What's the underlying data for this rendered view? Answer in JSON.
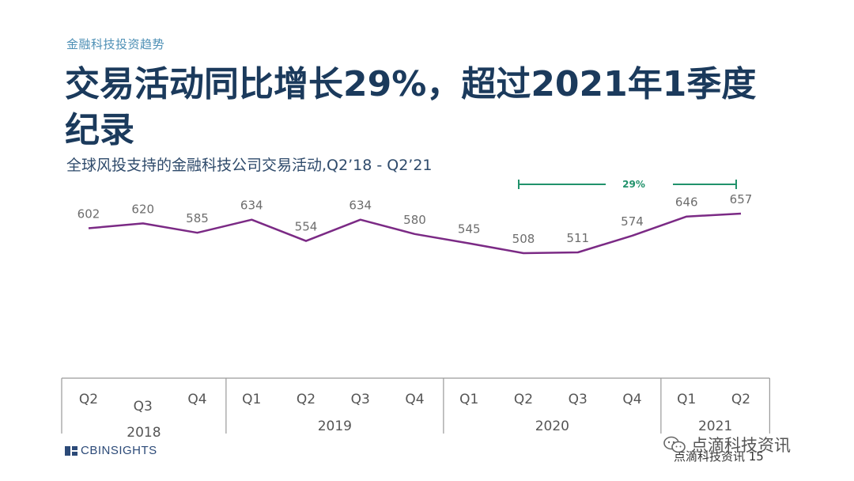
{
  "header": {
    "kicker": "金融科技投资趋势",
    "title": "交易活动同比增长29%，超过2021年1季度纪录",
    "subtitle": "全球风投支持的金融科技公司交易活动,Q2’18 - Q2’21"
  },
  "chart_data": {
    "type": "line",
    "title": "全球风投支持的金融科技公司交易活动,Q2’18 - Q2’21",
    "categories": [
      "Q2",
      "Q3",
      "Q4",
      "Q1",
      "Q2",
      "Q3",
      "Q4",
      "Q1",
      "Q2",
      "Q3",
      "Q4",
      "Q1",
      "Q2"
    ],
    "years": [
      {
        "label": "2018",
        "count": 3
      },
      {
        "label": "2019",
        "count": 4
      },
      {
        "label": "2020",
        "count": 4
      },
      {
        "label": "2021",
        "count": 2
      }
    ],
    "series": [
      {
        "values": [
          602,
          620,
          585,
          634,
          554,
          634,
          580,
          545,
          508,
          511,
          574,
          646,
          657
        ],
        "color": "#7b2a85"
      }
    ],
    "annotation": {
      "label": "29%",
      "from_index": 8,
      "to_index": 12,
      "color": "#21926b"
    },
    "ylim": [
      480,
      680
    ],
    "grid": false,
    "legend": "none"
  },
  "footer": {
    "logo_text": "CBINSIGHTS",
    "watermark": "点滴科技资讯",
    "page_text": "点滴科技资讯 15"
  }
}
